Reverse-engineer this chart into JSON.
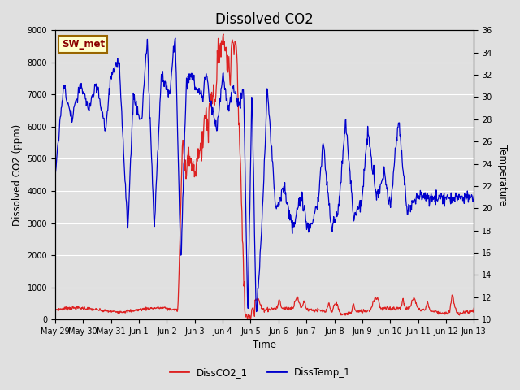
{
  "title": "Dissolved CO2",
  "xlabel": "Time",
  "ylabel_left": "Dissolved CO2 (ppm)",
  "ylabel_right": "Temperature",
  "ylim_left": [
    0,
    9000
  ],
  "ylim_right": [
    10,
    36
  ],
  "yticks_left": [
    0,
    1000,
    2000,
    3000,
    4000,
    5000,
    6000,
    7000,
    8000,
    9000
  ],
  "yticks_right": [
    10,
    12,
    14,
    16,
    18,
    20,
    22,
    24,
    26,
    28,
    30,
    32,
    34,
    36
  ],
  "background_color": "#e0e0e0",
  "plot_bg_color": "#e0e0e0",
  "grid_color": "white",
  "co2_color": "#dd2222",
  "temp_color": "#0000cc",
  "annotation_text": "SW_met",
  "annotation_box_color": "#ffffcc",
  "annotation_box_edge": "#996600",
  "legend_co2": "DissCO2_1",
  "legend_temp": "DissTemp_1",
  "title_fontsize": 12,
  "xtick_labels": [
    "May 29",
    "May 30",
    "May 31",
    "Jun 1",
    "Jun 2",
    "Jun 3",
    "Jun 4",
    "Jun 5",
    "Jun 6",
    "Jun 7",
    "Jun 8",
    "Jun 9",
    "Jun 10",
    "Jun 11",
    "Jun 12",
    "Jun 13"
  ]
}
